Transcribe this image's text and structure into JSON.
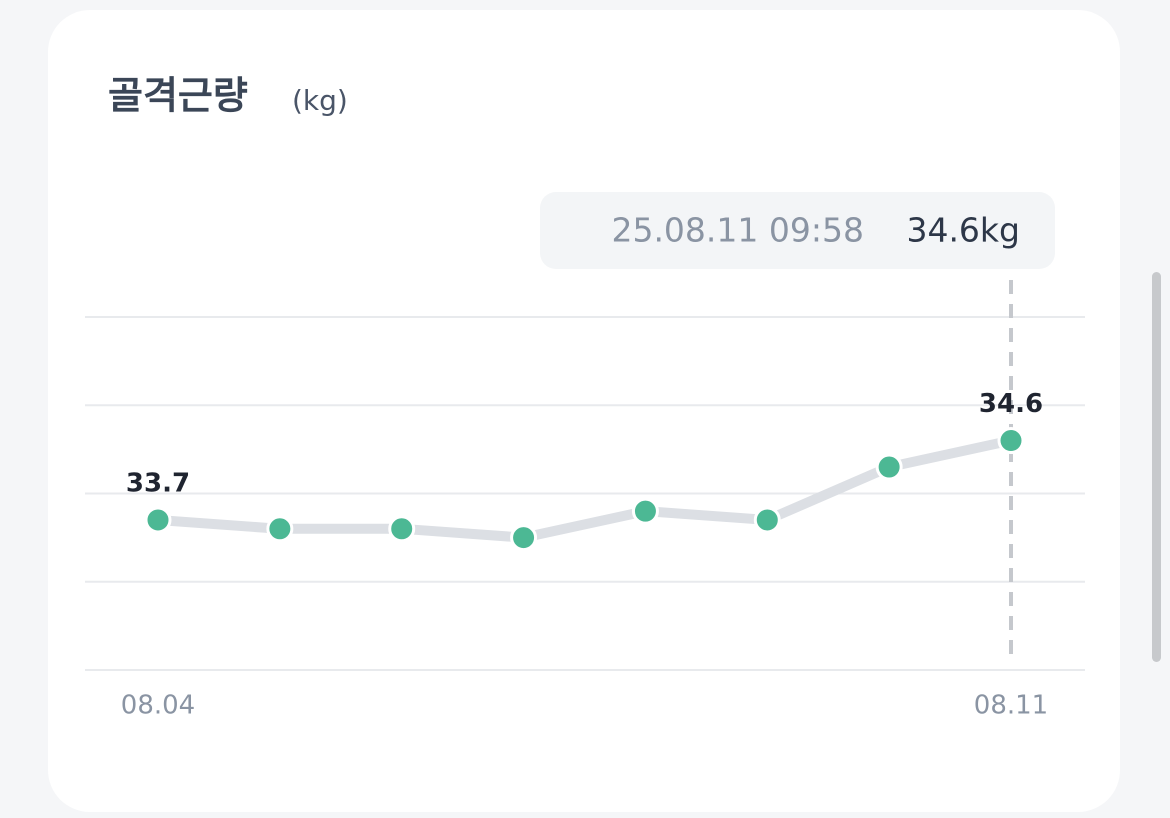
{
  "chart_data": {
    "type": "line",
    "title": "골격근량",
    "unit": "(kg)",
    "categories": [
      "08.04",
      null,
      null,
      null,
      null,
      null,
      null,
      "08.11"
    ],
    "series": [
      {
        "name": null,
        "color": "#4cb894",
        "line_color": "#dcdfe4",
        "values": [
          33.7,
          33.6,
          33.6,
          33.5,
          33.8,
          33.7,
          34.3,
          34.6
        ],
        "value_labels": [
          "33.7",
          null,
          null,
          null,
          null,
          null,
          null,
          "34.6"
        ]
      }
    ],
    "ylim": [
      32,
      36
    ],
    "yticks": [
      32,
      33,
      34,
      35,
      36
    ],
    "grid": true,
    "tooltip": {
      "datetime": "25.08.11 09:58",
      "value": "34.6kg"
    }
  }
}
